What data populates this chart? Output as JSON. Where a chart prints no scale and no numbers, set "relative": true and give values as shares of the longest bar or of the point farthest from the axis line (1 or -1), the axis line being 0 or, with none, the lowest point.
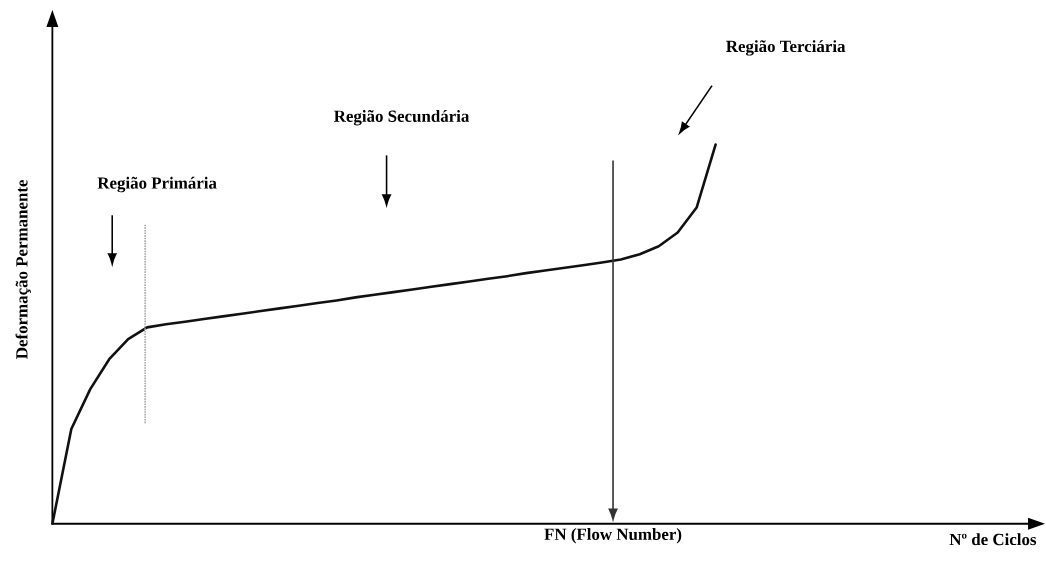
{
  "chart_data": {
    "type": "line",
    "relative": true,
    "xlabel": "Nº de Ciclos",
    "ylabel": "Deformação Permanente",
    "categories": [
      null,
      null,
      null,
      null,
      null,
      null,
      null,
      null,
      null,
      null,
      null,
      null,
      null,
      null,
      null,
      null,
      null,
      null,
      null,
      null,
      null,
      null,
      null,
      null,
      null,
      null,
      null,
      null,
      null,
      null,
      null,
      null,
      null,
      null,
      null,
      null,
      null,
      null,
      null,
      null,
      null,
      null,
      null,
      null,
      null,
      null,
      null,
      null,
      null,
      null,
      null,
      null
    ],
    "values": [
      0,
      0.25,
      0.355,
      0.434,
      0.487,
      0.518,
      0.526,
      0.533,
      0.54,
      0.547,
      0.554,
      0.561,
      0.568,
      0.575,
      0.582,
      0.589,
      0.597,
      0.604,
      0.611,
      0.618,
      0.625,
      0.632,
      0.639,
      0.646,
      0.653,
      0.661,
      0.668,
      0.675,
      0.682,
      0.689,
      0.697,
      0.711,
      0.732,
      0.768,
      0.834,
      1,
      null,
      null,
      null,
      null,
      null,
      null,
      null,
      null,
      null,
      null,
      null,
      null,
      null,
      null,
      null,
      null
    ],
    "color": "#111111",
    "marker": "none",
    "line_style": "solid",
    "annotations": [
      "Região Primária",
      "Região Secundária",
      "Região Terciária",
      "FN (Flow Number)"
    ]
  }
}
